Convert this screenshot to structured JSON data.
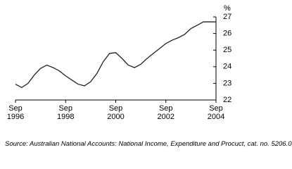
{
  "chart_data": {
    "type": "line",
    "y_label": "%",
    "source": "Source: Australian National Accounts: National Income, Expenditure and Procuct, cat. no. 5206.0",
    "x": [
      1996.75,
      1997.0,
      1997.25,
      1997.5,
      1997.75,
      1998.0,
      1998.25,
      1998.5,
      1998.75,
      1999.0,
      1999.25,
      1999.5,
      1999.75,
      2000.0,
      2000.25,
      2000.5,
      2000.75,
      2001.0,
      2001.25,
      2001.5,
      2001.75,
      2002.0,
      2002.25,
      2002.5,
      2002.75,
      2003.0,
      2003.25,
      2003.5,
      2003.75,
      2004.0,
      2004.25,
      2004.5,
      2004.75
    ],
    "series": [
      {
        "color": "#222222",
        "values": [
          22.95,
          22.75,
          23.0,
          23.5,
          23.9,
          24.1,
          23.95,
          23.75,
          23.45,
          23.2,
          22.95,
          22.85,
          23.1,
          23.6,
          24.3,
          24.8,
          24.85,
          24.5,
          24.1,
          23.95,
          24.15,
          24.5,
          24.8,
          25.1,
          25.4,
          25.6,
          25.75,
          25.95,
          26.3,
          26.5,
          26.7,
          26.7,
          26.7
        ]
      }
    ],
    "xlim": [
      1996.75,
      2004.75
    ],
    "xticks": [
      {
        "value": 1996.75,
        "label": "Sep 1996"
      },
      {
        "value": 1998.75,
        "label": "Sep 1998"
      },
      {
        "value": 2000.75,
        "label": "Sep 2000"
      },
      {
        "value": 2002.75,
        "label": "Sep 2002"
      },
      {
        "value": 2004.75,
        "label": "Sep 2004"
      }
    ],
    "ylim": [
      22,
      27
    ],
    "yticks": [
      22,
      23,
      24,
      25,
      26,
      27
    ]
  }
}
